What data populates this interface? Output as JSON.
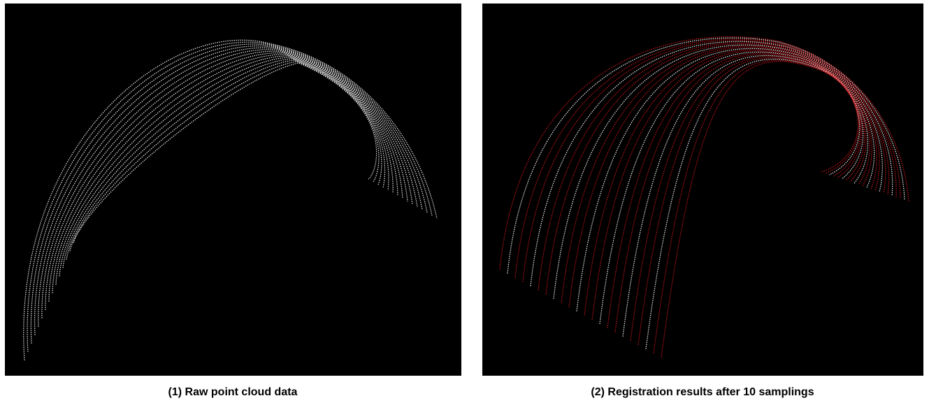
{
  "panels": [
    {
      "caption": "(1) Raw point cloud data"
    },
    {
      "caption": "(2) Registration results after 10 samplings"
    }
  ]
}
